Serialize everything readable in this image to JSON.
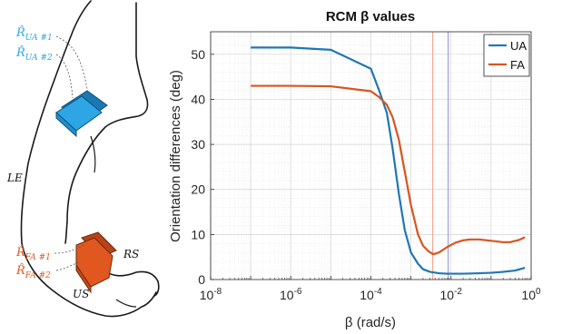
{
  "illustration": {
    "sensor_labels": {
      "ua1": {
        "hat": "R̂",
        "sub": "UA #1"
      },
      "ua2": {
        "hat": "R̂",
        "sub": "UA #2"
      },
      "fa1": {
        "hat": "R̂",
        "sub": "FA #1"
      },
      "fa2": {
        "hat": "R̂",
        "sub": "FA #2"
      }
    },
    "landmarks": {
      "le": "LE",
      "rs": "RS",
      "us": "US"
    },
    "colors": {
      "upper_arm_sensor": "#2ea6e6",
      "forearm_sensor": "#e0581f"
    }
  },
  "chart_data": {
    "type": "line",
    "title": "RCM β values",
    "xlabel": "β (rad/s)",
    "ylabel": "Orientation differences (deg)",
    "x_scale": "log",
    "xlim": [
      1e-08,
      1
    ],
    "ylim": [
      0,
      55
    ],
    "x_ticks": [
      {
        "value": 1e-08,
        "base": "10",
        "exp": "-8"
      },
      {
        "value": 1e-06,
        "base": "10",
        "exp": "-6"
      },
      {
        "value": 0.0001,
        "base": "10",
        "exp": "-4"
      },
      {
        "value": 0.01,
        "base": "10",
        "exp": "-2"
      },
      {
        "value": 1,
        "base": "10",
        "exp": "0"
      }
    ],
    "y_ticks": [
      0,
      10,
      20,
      30,
      40,
      50
    ],
    "grid": true,
    "legend_position": "top-right",
    "vlines": [
      {
        "x": 0.0035,
        "color": "#f2a090"
      },
      {
        "x": 0.0085,
        "color": "#9b9bd0"
      }
    ],
    "series": [
      {
        "name": "UA",
        "color": "#1f77b4",
        "x": [
          1e-07,
          1e-06,
          1e-05,
          0.0001,
          0.00016,
          0.00025,
          0.00035,
          0.0005,
          0.0007,
          0.001,
          0.0015,
          0.002,
          0.003,
          0.005,
          0.008,
          0.01,
          0.02,
          0.05,
          0.1,
          0.2,
          0.4,
          0.7
        ],
        "y": [
          51.5,
          51.5,
          51.0,
          46.8,
          42.0,
          37.0,
          29.0,
          19.0,
          11.0,
          6.0,
          3.5,
          2.3,
          1.7,
          1.4,
          1.3,
          1.3,
          1.3,
          1.4,
          1.5,
          1.7,
          2.0,
          2.6
        ]
      },
      {
        "name": "FA",
        "color": "#d9541e",
        "x": [
          1e-07,
          1e-06,
          1e-05,
          0.0001,
          0.00016,
          0.00025,
          0.00035,
          0.0005,
          0.0007,
          0.001,
          0.0015,
          0.002,
          0.0028,
          0.0036,
          0.005,
          0.008,
          0.013,
          0.02,
          0.03,
          0.05,
          0.1,
          0.2,
          0.3,
          0.5,
          0.7
        ],
        "y": [
          43.0,
          43.0,
          42.9,
          41.8,
          40.5,
          38.8,
          36.0,
          31.0,
          24.0,
          16.5,
          10.0,
          7.5,
          6.2,
          5.6,
          6.0,
          7.2,
          8.2,
          8.7,
          8.9,
          8.9,
          8.6,
          8.3,
          8.3,
          8.8,
          9.4
        ]
      }
    ]
  }
}
